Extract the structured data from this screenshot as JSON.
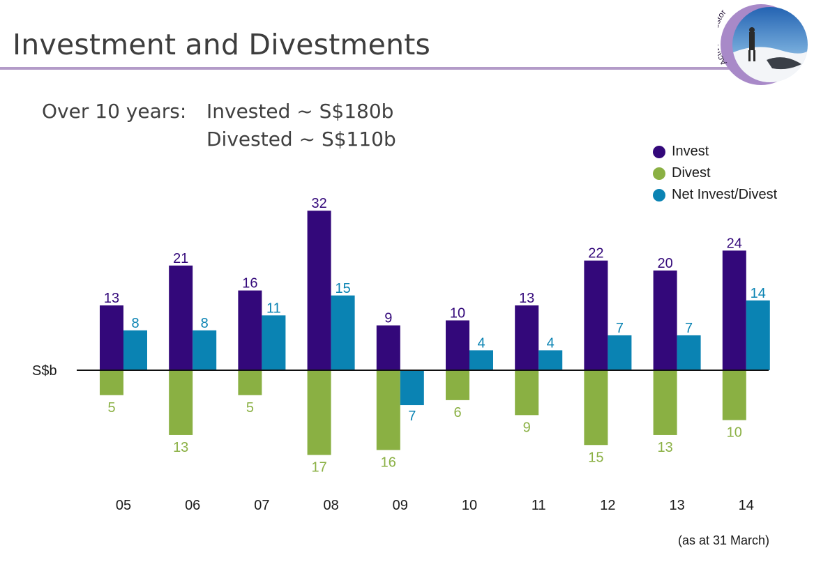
{
  "page": {
    "title": "Investment and Divestments",
    "badge_text": "Active Investor",
    "summary": {
      "lead": "Over 10 years:",
      "line1": "Invested ~ S$180b",
      "line2": "Divested ~ S$110b"
    },
    "footnote": "(as at 31 March)"
  },
  "colors": {
    "invest": "#33087a",
    "divest": "#8ab043",
    "net": "#0a83b3",
    "rule": "#b39bc8"
  },
  "chart_data": {
    "type": "bar",
    "ylabel": "S$b",
    "categories": [
      "05",
      "06",
      "07",
      "08",
      "09",
      "10",
      "11",
      "12",
      "13",
      "14"
    ],
    "series": [
      {
        "name": "Invest",
        "values": [
          13,
          21,
          16,
          32,
          9,
          10,
          13,
          22,
          20,
          24
        ]
      },
      {
        "name": "Divest",
        "values": [
          -5,
          -13,
          -5,
          -17,
          -16,
          -6,
          -9,
          -15,
          -13,
          -10
        ]
      },
      {
        "name": "Net Invest/Divest",
        "values": [
          8,
          8,
          11,
          15,
          -7,
          4,
          4,
          7,
          7,
          14
        ]
      }
    ],
    "legend_position": "top-right",
    "grid": false
  }
}
